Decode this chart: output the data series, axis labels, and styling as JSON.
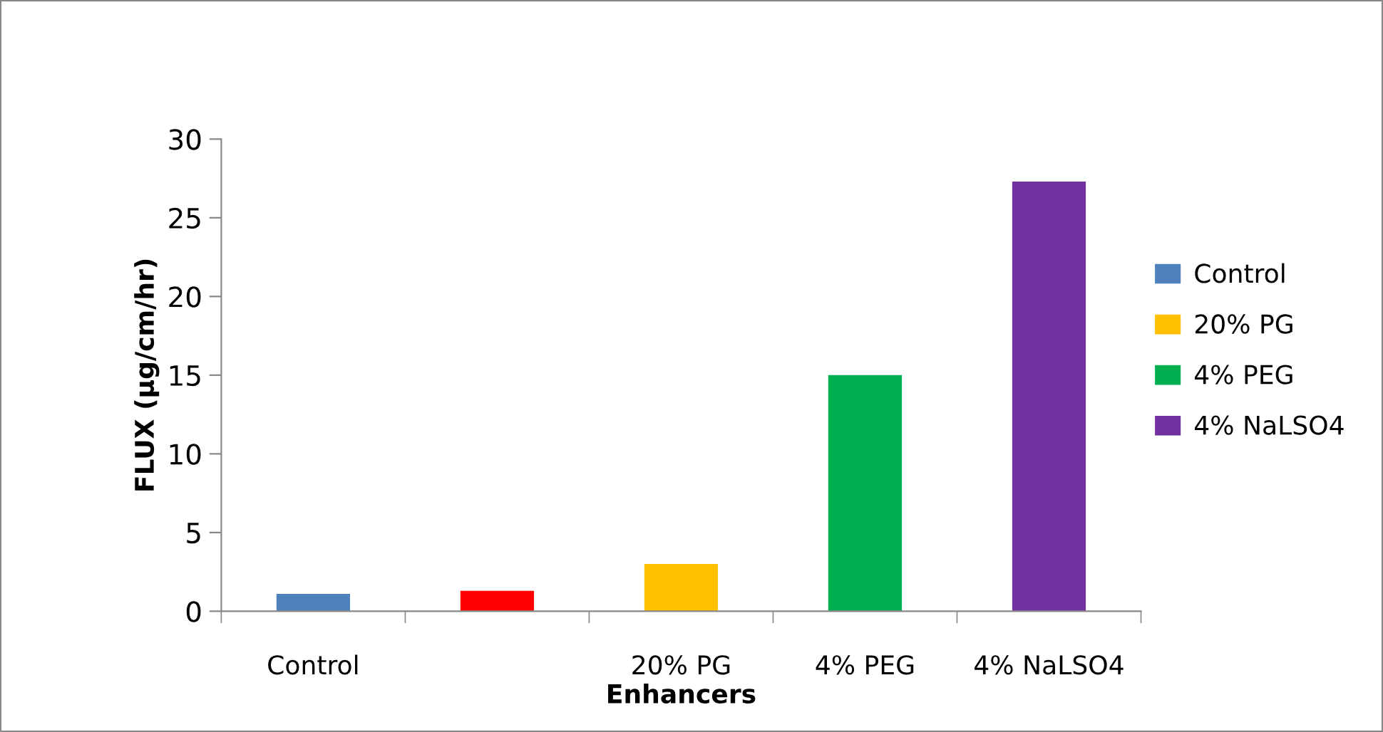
{
  "chart_data": {
    "type": "bar",
    "xlabel": "Enhancers",
    "ylabel": "FLUX (µg/cm/hr)",
    "categories": [
      "Control",
      null,
      "20% PG",
      "4% PEG",
      "4% NaLSO4"
    ],
    "series": [
      {
        "name": "Control",
        "color": "#4f81bd",
        "values": [
          1.1,
          null,
          null,
          null,
          null
        ]
      },
      {
        "color": "#ff0000",
        "values": [
          null,
          1.3,
          null,
          null,
          null
        ]
      },
      {
        "name": "20% PG",
        "color": "#ffc000",
        "values": [
          null,
          null,
          3.0,
          null,
          null
        ]
      },
      {
        "name": "4% PEG",
        "color": "#00b050",
        "values": [
          null,
          null,
          null,
          15.0,
          null
        ]
      },
      {
        "name": "4% NaLSO4",
        "color": "#7030a0",
        "values": [
          null,
          null,
          null,
          null,
          27.3
        ]
      }
    ],
    "ylim": [
      0,
      30
    ],
    "yticks": [
      0,
      5,
      10,
      15,
      20,
      25,
      30
    ],
    "grid": false,
    "legend": "right"
  }
}
